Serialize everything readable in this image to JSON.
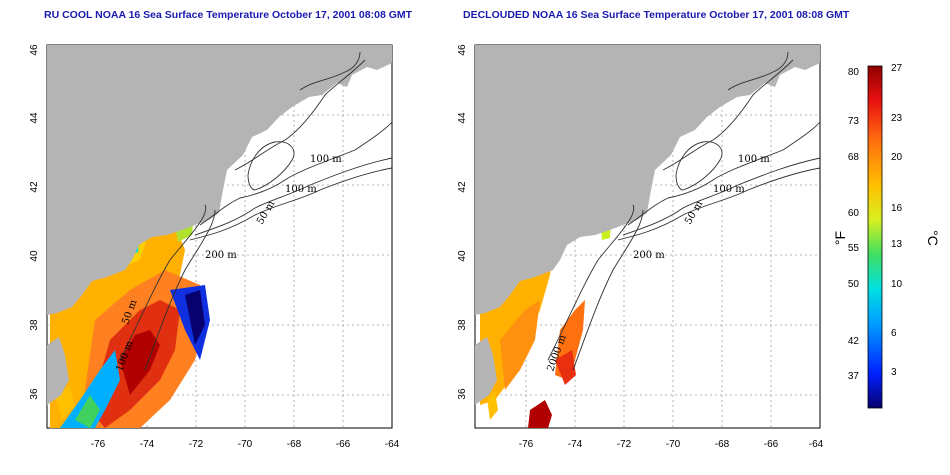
{
  "left_panel": {
    "title": "RU COOL NOAA 16 Sea Surface Temperature October 17, 2001 08:08 GMT",
    "contours": [
      "100 m",
      "100 m",
      "50 m",
      "200 m",
      "50 m",
      "100 m"
    ]
  },
  "right_panel": {
    "title": "DECLOUDED NOAA 16 Sea Surface Temperature October 17, 2001 08:08 GMT",
    "contours": [
      "100 m",
      "100 m",
      "50 m",
      "200 m",
      "2000 m"
    ]
  },
  "axes": {
    "x_ticks": [
      "-76",
      "-74",
      "-72",
      "-70",
      "-68",
      "-66",
      "-64"
    ],
    "y_ticks": [
      "46",
      "44",
      "42",
      "40",
      "38",
      "36"
    ],
    "lon_range": [
      -77.0,
      -63.0
    ],
    "lat_range": [
      35.0,
      46.0
    ]
  },
  "colorbar": {
    "f_label": "°F",
    "c_label": "°C",
    "f_ticks": [
      "80",
      "73",
      "68",
      "60",
      "55",
      "50",
      "42",
      "37"
    ],
    "c_ticks": [
      "27",
      "23",
      "20",
      "16",
      "13",
      "10",
      "6",
      "3"
    ],
    "colors": [
      "#08006e",
      "#0020ff",
      "#00a0ff",
      "#00e0e0",
      "#40e060",
      "#d8f020",
      "#ffc000",
      "#ff7010",
      "#e81010",
      "#900000"
    ]
  },
  "colors": {
    "land": "#b4b4b4",
    "grid": "#a0a0a0",
    "title": "#1a1ab0"
  }
}
